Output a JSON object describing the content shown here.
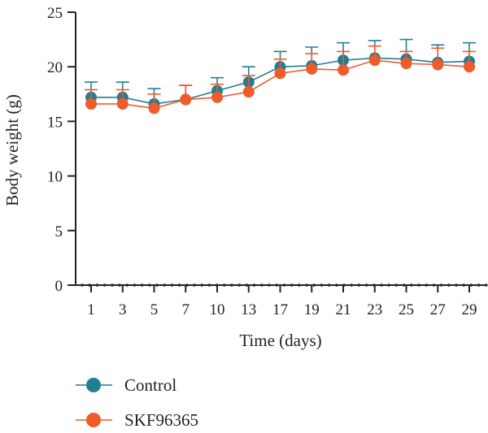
{
  "chart_data": {
    "type": "line",
    "title": "",
    "xlabel": "Time (days)",
    "ylabel": "Body weight (g)",
    "ylim": [
      0,
      25
    ],
    "yticks": [
      0,
      5,
      10,
      15,
      20,
      25
    ],
    "x": [
      1,
      3,
      5,
      7,
      10,
      13,
      17,
      19,
      21,
      23,
      25,
      27,
      29
    ],
    "grid": false,
    "legend": "bottom-left",
    "series": [
      {
        "name": "Control",
        "color": "#227e92",
        "values": [
          17.2,
          17.2,
          16.6,
          17.0,
          17.8,
          18.6,
          20.0,
          20.1,
          20.6,
          20.8,
          20.7,
          20.4,
          20.5
        ],
        "error": [
          1.4,
          1.4,
          1.4,
          1.3,
          1.2,
          1.4,
          1.4,
          1.7,
          1.6,
          1.6,
          1.8,
          1.6,
          1.7
        ]
      },
      {
        "name": "SKF96365",
        "color": "#f15a2b",
        "values": [
          16.6,
          16.6,
          16.2,
          17.0,
          17.2,
          17.7,
          19.4,
          19.8,
          19.7,
          20.6,
          20.3,
          20.2,
          20.0
        ],
        "error": [
          1.3,
          1.3,
          1.3,
          1.3,
          1.2,
          1.5,
          1.3,
          1.4,
          1.7,
          1.3,
          1.1,
          1.5,
          1.4
        ]
      }
    ]
  }
}
